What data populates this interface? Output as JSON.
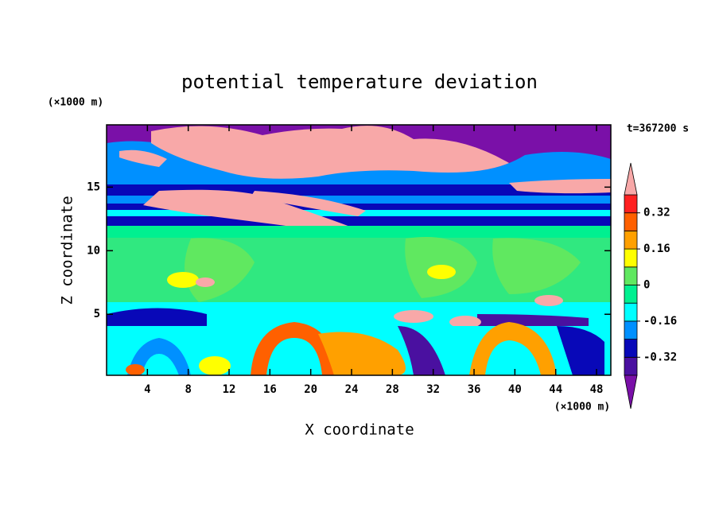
{
  "chart_data": {
    "type": "contour",
    "title": "potential temperature deviation",
    "x_label": "X coordinate",
    "y_label": "Z coordinate",
    "x_unit": "(×1000 m)",
    "y_unit": "(×1000 m)",
    "annotation": "t=367200 s",
    "xlim": [
      0,
      49.4
    ],
    "xticks": [
      4,
      8,
      12,
      16,
      20,
      24,
      28,
      32,
      36,
      40,
      44,
      48
    ],
    "ylim": [
      0.2,
      19.9
    ],
    "yticks": [
      5,
      10,
      15
    ],
    "colorbar": {
      "levels": [
        -0.4,
        -0.32,
        -0.24,
        -0.16,
        -0.08,
        0,
        0.08,
        0.16,
        0.24,
        0.32,
        0.4
      ],
      "colors": [
        "#7a10a8",
        "#4a10a0",
        "#0808b8",
        "#0090ff",
        "#00ffff",
        "#00f090",
        "#60e860",
        "#ffff00",
        "#ffa000",
        "#ff6000",
        "#ff2020",
        "#f8a8a8"
      ],
      "ticks": [
        -0.32,
        -0.16,
        0,
        0.16,
        0.32
      ]
    }
  }
}
